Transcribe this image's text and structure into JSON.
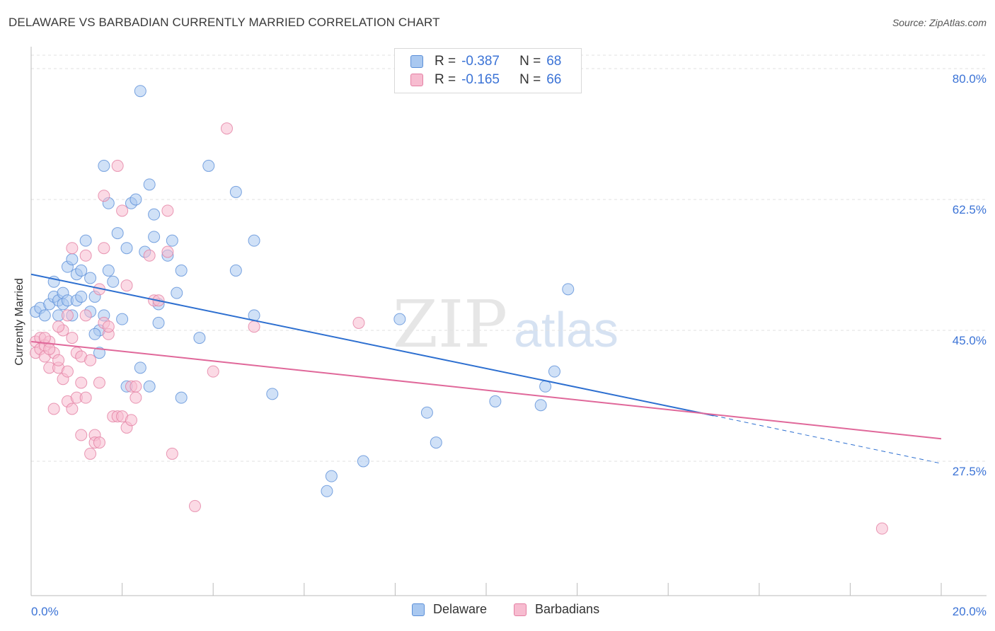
{
  "header": {
    "title": "DELAWARE VS BARBADIAN CURRENTLY MARRIED CORRELATION CHART",
    "source": "Source: ZipAtlas.com"
  },
  "watermark": {
    "zip": "ZIP",
    "atlas": "atlas"
  },
  "legend_top": {
    "rows": [
      {
        "r_label": "R =",
        "r_value": "-0.387",
        "n_label": "N =",
        "n_value": "68"
      },
      {
        "r_label": "R =",
        "r_value": "-0.165",
        "n_label": "N =",
        "n_value": "66"
      }
    ]
  },
  "legend_bottom": {
    "items": [
      "Delaware",
      "Barbadians"
    ]
  },
  "colors": {
    "delaware_fill": "#a9c8f0",
    "delaware_stroke": "#5b8fd8",
    "delaware_line": "#2d6fd0",
    "barbadian_fill": "#f7bcd0",
    "barbadian_stroke": "#e47fa3",
    "barbadian_line": "#e0689a",
    "grid": "#e2e2e2",
    "tick_label": "#3b73d6",
    "value_text": "#3b73d6"
  },
  "chart_data": {
    "type": "scatter",
    "title": "DELAWARE VS BARBADIAN CURRENTLY MARRIED CORRELATION CHART",
    "xlabel": "",
    "ylabel": "Currently Married",
    "xlim": [
      0,
      20
    ],
    "ylim": [
      10,
      82
    ],
    "x_tick_labels": [
      "0.0%",
      "20.0%"
    ],
    "y_ticks": [
      27.5,
      45.0,
      62.5,
      80.0
    ],
    "y_tick_labels": [
      "27.5%",
      "45.0%",
      "62.5%",
      "80.0%"
    ],
    "grid": true,
    "legend_position": "top-center",
    "series": [
      {
        "name": "Delaware",
        "R": -0.387,
        "N": 68,
        "trend": {
          "x0": 0,
          "y0": 52.5,
          "x1": 15.0,
          "y1": 33.6,
          "dashed_to_x": 20.0,
          "dashed_to_y": 27.2
        },
        "points": [
          [
            0.1,
            47.5
          ],
          [
            0.2,
            48.0
          ],
          [
            0.3,
            47.0
          ],
          [
            0.4,
            48.5
          ],
          [
            0.5,
            49.5
          ],
          [
            0.5,
            51.5
          ],
          [
            0.6,
            49.0
          ],
          [
            0.6,
            47.0
          ],
          [
            0.7,
            50.0
          ],
          [
            0.7,
            48.5
          ],
          [
            0.8,
            53.5
          ],
          [
            0.8,
            49.0
          ],
          [
            0.9,
            54.5
          ],
          [
            0.9,
            47.0
          ],
          [
            1.0,
            52.5
          ],
          [
            1.0,
            49.0
          ],
          [
            1.1,
            53.0
          ],
          [
            1.1,
            49.5
          ],
          [
            1.2,
            57.0
          ],
          [
            1.3,
            52.0
          ],
          [
            1.3,
            47.5
          ],
          [
            1.4,
            49.5
          ],
          [
            1.5,
            42.0
          ],
          [
            1.5,
            45.0
          ],
          [
            1.6,
            67.0
          ],
          [
            1.6,
            47.0
          ],
          [
            1.7,
            53.0
          ],
          [
            1.7,
            62.0
          ],
          [
            1.8,
            51.5
          ],
          [
            1.9,
            58.0
          ],
          [
            2.1,
            56.0
          ],
          [
            2.1,
            37.5
          ],
          [
            2.2,
            62.0
          ],
          [
            2.3,
            62.5
          ],
          [
            2.4,
            40.0
          ],
          [
            2.4,
            77.0
          ],
          [
            2.5,
            55.5
          ],
          [
            2.6,
            64.5
          ],
          [
            2.6,
            37.5
          ],
          [
            2.7,
            60.5
          ],
          [
            2.7,
            57.5
          ],
          [
            2.8,
            48.5
          ],
          [
            2.8,
            46.0
          ],
          [
            3.0,
            55.0
          ],
          [
            3.1,
            57.0
          ],
          [
            3.2,
            50.0
          ],
          [
            3.3,
            53.0
          ],
          [
            3.3,
            36.0
          ],
          [
            3.7,
            44.0
          ],
          [
            3.9,
            67.0
          ],
          [
            4.5,
            63.5
          ],
          [
            4.5,
            53.0
          ],
          [
            4.9,
            57.0
          ],
          [
            4.9,
            47.0
          ],
          [
            5.3,
            36.5
          ],
          [
            6.5,
            23.5
          ],
          [
            6.6,
            25.5
          ],
          [
            7.3,
            27.5
          ],
          [
            8.1,
            46.5
          ],
          [
            8.7,
            34.0
          ],
          [
            8.9,
            30.0
          ],
          [
            10.2,
            35.5
          ],
          [
            11.2,
            35.0
          ],
          [
            11.3,
            37.5
          ],
          [
            11.5,
            39.5
          ],
          [
            11.8,
            50.5
          ],
          [
            2.0,
            46.5
          ],
          [
            1.4,
            44.5
          ]
        ]
      },
      {
        "name": "Barbadians",
        "R": -0.165,
        "N": 66,
        "trend": {
          "x0": 0,
          "y0": 43.5,
          "x1": 20.0,
          "y1": 30.5
        },
        "points": [
          [
            0.1,
            43.5
          ],
          [
            0.1,
            42.0
          ],
          [
            0.2,
            44.0
          ],
          [
            0.2,
            42.5
          ],
          [
            0.3,
            43.0
          ],
          [
            0.3,
            41.5
          ],
          [
            0.4,
            40.0
          ],
          [
            0.4,
            43.5
          ],
          [
            0.5,
            34.5
          ],
          [
            0.5,
            42.0
          ],
          [
            0.6,
            40.0
          ],
          [
            0.6,
            41.0
          ],
          [
            0.7,
            38.5
          ],
          [
            0.7,
            45.0
          ],
          [
            0.8,
            35.5
          ],
          [
            0.8,
            39.5
          ],
          [
            0.9,
            34.5
          ],
          [
            0.9,
            44.0
          ],
          [
            0.9,
            56.0
          ],
          [
            1.0,
            42.0
          ],
          [
            1.0,
            36.0
          ],
          [
            1.1,
            41.5
          ],
          [
            1.1,
            38.0
          ],
          [
            1.1,
            31.0
          ],
          [
            1.2,
            55.0
          ],
          [
            1.2,
            36.0
          ],
          [
            1.3,
            28.5
          ],
          [
            1.3,
            41.0
          ],
          [
            1.4,
            31.0
          ],
          [
            1.4,
            30.0
          ],
          [
            1.5,
            38.0
          ],
          [
            1.5,
            30.0
          ],
          [
            1.6,
            46.0
          ],
          [
            1.6,
            63.0
          ],
          [
            1.6,
            56.0
          ],
          [
            1.7,
            44.5
          ],
          [
            1.7,
            45.5
          ],
          [
            1.8,
            33.5
          ],
          [
            1.9,
            67.0
          ],
          [
            1.9,
            33.5
          ],
          [
            2.0,
            33.5
          ],
          [
            2.0,
            61.0
          ],
          [
            2.1,
            32.0
          ],
          [
            2.1,
            51.0
          ],
          [
            2.2,
            33.0
          ],
          [
            2.2,
            37.5
          ],
          [
            2.3,
            37.5
          ],
          [
            2.3,
            36.0
          ],
          [
            2.6,
            55.0
          ],
          [
            2.7,
            49.0
          ],
          [
            2.8,
            49.0
          ],
          [
            3.0,
            61.0
          ],
          [
            3.0,
            55.5
          ],
          [
            3.1,
            28.5
          ],
          [
            3.6,
            21.5
          ],
          [
            4.0,
            39.5
          ],
          [
            4.3,
            72.0
          ],
          [
            4.9,
            45.5
          ],
          [
            7.2,
            46.0
          ],
          [
            18.7,
            18.5
          ],
          [
            0.3,
            44.0
          ],
          [
            0.4,
            42.5
          ],
          [
            0.6,
            45.5
          ],
          [
            1.2,
            47.0
          ],
          [
            1.5,
            50.5
          ],
          [
            0.8,
            47.0
          ]
        ]
      }
    ]
  }
}
